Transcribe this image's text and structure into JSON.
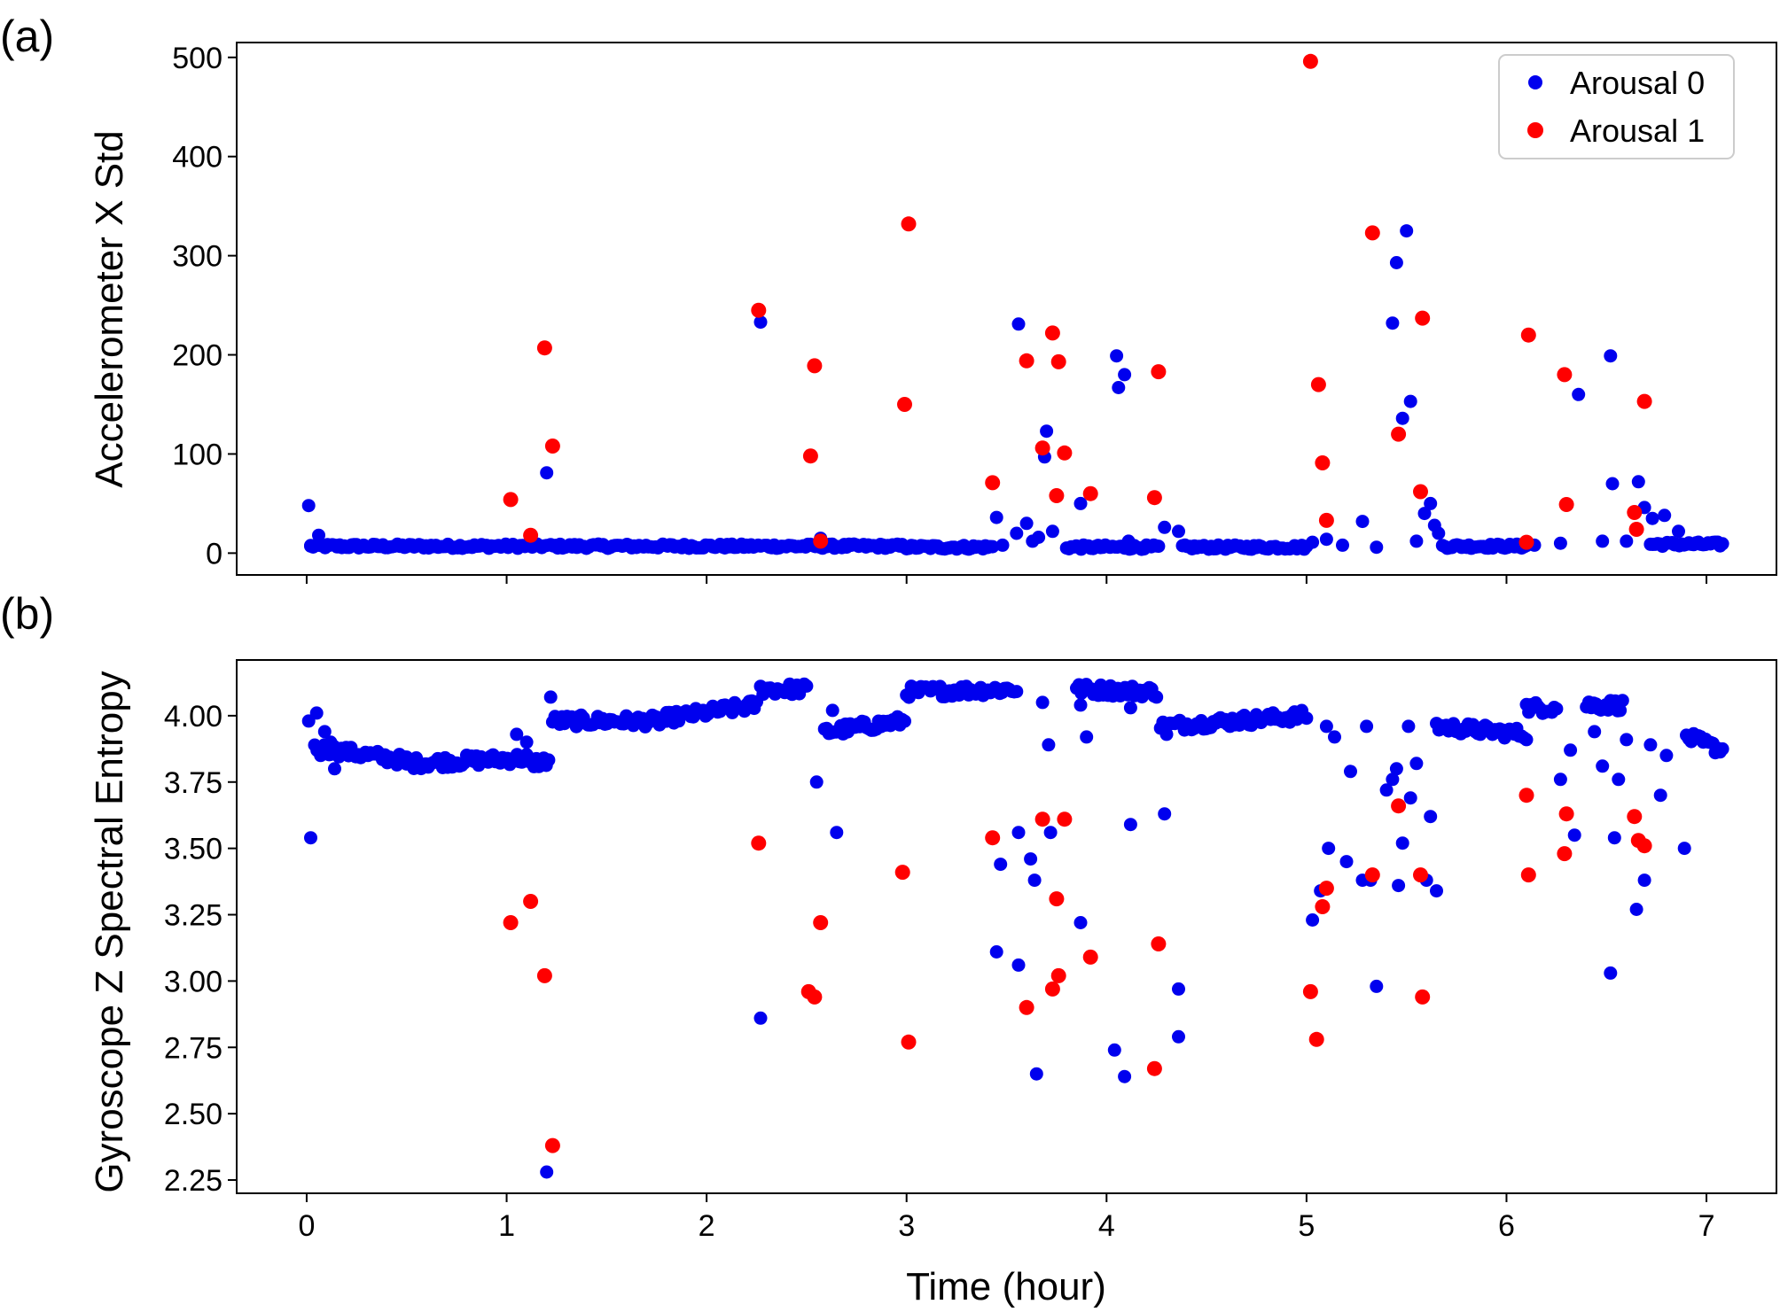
{
  "chart_data": [
    {
      "type": "scatter",
      "panel_label": "(a)",
      "title": "",
      "xlabel": "",
      "ylabel": "Accelerometer X Std",
      "xlim": [
        -0.35,
        7.35
      ],
      "ylim": [
        -22,
        515
      ],
      "xticks": [
        0,
        1,
        2,
        3,
        4,
        5,
        6,
        7
      ],
      "xtick_labels_shown": false,
      "yticks": [
        0,
        100,
        200,
        300,
        400,
        500
      ],
      "ytick_labels": [
        "0",
        "100",
        "200",
        "300",
        "400",
        "500"
      ],
      "legend": {
        "position": "top-right",
        "entries": [
          "Arousal 0",
          "Arousal 1"
        ]
      },
      "series": [
        {
          "name": "Arousal 0",
          "color": "#0000ee",
          "baseline": {
            "description": "dense low-level band",
            "segments": [
              {
                "x0": 0.02,
                "x1": 1.2,
                "y": 7
              },
              {
                "x0": 1.22,
                "x1": 2.27,
                "y": 7
              },
              {
                "x0": 2.29,
                "x1": 2.99,
                "y": 7
              },
              {
                "x0": 3.0,
                "x1": 3.43,
                "y": 6
              },
              {
                "x0": 3.8,
                "x1": 4.26,
                "y": 6
              },
              {
                "x0": 4.38,
                "x1": 5.0,
                "y": 6
              },
              {
                "x0": 5.68,
                "x1": 6.1,
                "y": 7
              },
              {
                "x0": 6.72,
                "x1": 7.08,
                "y": 9
              }
            ]
          },
          "points": [
            [
              0.01,
              48
            ],
            [
              0.06,
              18
            ],
            [
              0.02,
              7
            ],
            [
              1.2,
              81
            ],
            [
              2.27,
              233
            ],
            [
              2.57,
              15
            ],
            [
              3.45,
              36
            ],
            [
              3.48,
              8
            ],
            [
              3.56,
              231
            ],
            [
              3.55,
              20
            ],
            [
              3.6,
              30
            ],
            [
              3.63,
              12
            ],
            [
              3.66,
              16
            ],
            [
              3.69,
              97
            ],
            [
              3.7,
              123
            ],
            [
              3.73,
              22
            ],
            [
              3.87,
              50
            ],
            [
              4.05,
              199
            ],
            [
              4.06,
              167
            ],
            [
              4.09,
              180
            ],
            [
              4.11,
              12
            ],
            [
              4.29,
              26
            ],
            [
              4.36,
              22
            ],
            [
              5.03,
              11
            ],
            [
              5.1,
              14
            ],
            [
              5.18,
              8
            ],
            [
              5.28,
              32
            ],
            [
              5.35,
              6
            ],
            [
              5.43,
              232
            ],
            [
              5.45,
              293
            ],
            [
              5.48,
              136
            ],
            [
              5.5,
              325
            ],
            [
              5.52,
              153
            ],
            [
              5.55,
              12
            ],
            [
              5.59,
              40
            ],
            [
              5.62,
              50
            ],
            [
              5.64,
              28
            ],
            [
              5.66,
              20
            ],
            [
              6.14,
              8
            ],
            [
              6.27,
              10
            ],
            [
              6.36,
              160
            ],
            [
              6.48,
              12
            ],
            [
              6.52,
              199
            ],
            [
              6.53,
              70
            ],
            [
              6.6,
              12
            ],
            [
              6.66,
              72
            ],
            [
              6.69,
              46
            ],
            [
              6.73,
              35
            ],
            [
              6.79,
              38
            ],
            [
              6.86,
              22
            ]
          ]
        },
        {
          "name": "Arousal 1",
          "color": "#ff0000",
          "points": [
            [
              1.02,
              54
            ],
            [
              1.12,
              18
            ],
            [
              1.19,
              207
            ],
            [
              1.23,
              108
            ],
            [
              2.26,
              245
            ],
            [
              2.52,
              98
            ],
            [
              2.54,
              189
            ],
            [
              2.57,
              12
            ],
            [
              2.99,
              150
            ],
            [
              3.01,
              332
            ],
            [
              3.43,
              71
            ],
            [
              3.6,
              194
            ],
            [
              3.68,
              106
            ],
            [
              3.73,
              222
            ],
            [
              3.75,
              58
            ],
            [
              3.76,
              193
            ],
            [
              3.79,
              101
            ],
            [
              3.92,
              60
            ],
            [
              4.24,
              56
            ],
            [
              4.26,
              183
            ],
            [
              5.02,
              496
            ],
            [
              5.06,
              170
            ],
            [
              5.08,
              91
            ],
            [
              5.1,
              33
            ],
            [
              5.33,
              323
            ],
            [
              5.46,
              120
            ],
            [
              5.57,
              62
            ],
            [
              5.58,
              237
            ],
            [
              6.1,
              11
            ],
            [
              6.11,
              220
            ],
            [
              6.29,
              180
            ],
            [
              6.3,
              49
            ],
            [
              6.64,
              41
            ],
            [
              6.65,
              24
            ],
            [
              6.69,
              153
            ]
          ]
        }
      ]
    },
    {
      "type": "scatter",
      "panel_label": "(b)",
      "title": "",
      "xlabel": "Time (hour)",
      "ylabel": "Gyroscope Z Spectral Entropy",
      "xlim": [
        -0.35,
        7.35
      ],
      "ylim": [
        2.2,
        4.21
      ],
      "xticks": [
        0,
        1,
        2,
        3,
        4,
        5,
        6,
        7
      ],
      "xtick_labels": [
        "0",
        "1",
        "2",
        "3",
        "4",
        "5",
        "6",
        "7"
      ],
      "yticks": [
        2.25,
        2.5,
        2.75,
        3.0,
        3.25,
        3.5,
        3.75,
        4.0
      ],
      "ytick_labels": [
        "2.25",
        "2.50",
        "2.75",
        "3.00",
        "3.25",
        "3.50",
        "3.75",
        "4.00"
      ],
      "series": [
        {
          "name": "Arousal 0",
          "color": "#0000ee",
          "baseline": {
            "description": "dense upper band with jitter",
            "segments": [
              {
                "x0": 0.04,
                "x1": 0.5,
                "y0": 3.88,
                "y1": 3.83
              },
              {
                "x0": 0.5,
                "x1": 1.1,
                "y0": 3.82,
                "y1": 3.84
              },
              {
                "x0": 1.1,
                "x1": 1.21,
                "y0": 3.82,
                "y1": 3.83
              },
              {
                "x0": 1.23,
                "x1": 1.8,
                "y0": 3.98,
                "y1": 3.98
              },
              {
                "x0": 1.8,
                "x1": 2.25,
                "y0": 3.99,
                "y1": 4.04
              },
              {
                "x0": 2.27,
                "x1": 2.5,
                "y0": 4.1,
                "y1": 4.1
              },
              {
                "x0": 2.6,
                "x1": 2.99,
                "y0": 3.94,
                "y1": 3.98
              },
              {
                "x0": 3.0,
                "x1": 3.55,
                "y0": 4.09,
                "y1": 4.1
              },
              {
                "x0": 3.85,
                "x1": 4.25,
                "y0": 4.1,
                "y1": 4.09
              },
              {
                "x0": 4.27,
                "x1": 5.0,
                "y0": 3.96,
                "y1": 4.0
              },
              {
                "x0": 5.65,
                "x1": 6.1,
                "y0": 3.96,
                "y1": 3.93
              },
              {
                "x0": 6.1,
                "x1": 6.25,
                "y0": 4.03,
                "y1": 4.03
              },
              {
                "x0": 6.4,
                "x1": 6.58,
                "y0": 4.04,
                "y1": 4.04
              },
              {
                "x0": 6.9,
                "x1": 7.08,
                "y0": 3.92,
                "y1": 3.87
              }
            ]
          },
          "points": [
            [
              0.01,
              3.98
            ],
            [
              0.05,
              4.01
            ],
            [
              0.07,
              3.85
            ],
            [
              0.09,
              3.94
            ],
            [
              0.12,
              3.9
            ],
            [
              0.14,
              3.8
            ],
            [
              0.02,
              3.54
            ],
            [
              1.05,
              3.93
            ],
            [
              1.1,
              3.9
            ],
            [
              1.2,
              2.28
            ],
            [
              1.22,
              4.07
            ],
            [
              2.27,
              2.86
            ],
            [
              2.55,
              3.75
            ],
            [
              2.59,
              3.95
            ],
            [
              2.63,
              4.02
            ],
            [
              2.65,
              3.56
            ],
            [
              3.47,
              3.44
            ],
            [
              3.45,
              3.11
            ],
            [
              3.56,
              3.06
            ],
            [
              3.56,
              3.56
            ],
            [
              3.62,
              3.46
            ],
            [
              3.64,
              3.38
            ],
            [
              3.65,
              2.65
            ],
            [
              3.68,
              4.05
            ],
            [
              3.71,
              3.89
            ],
            [
              3.72,
              3.56
            ],
            [
              3.87,
              3.22
            ],
            [
              3.9,
              3.92
            ],
            [
              3.87,
              4.04
            ],
            [
              4.04,
              2.74
            ],
            [
              4.09,
              2.64
            ],
            [
              4.12,
              3.59
            ],
            [
              4.12,
              4.03
            ],
            [
              4.29,
              3.63
            ],
            [
              4.3,
              3.93
            ],
            [
              4.36,
              2.97
            ],
            [
              4.36,
              2.79
            ],
            [
              5.03,
              3.23
            ],
            [
              5.07,
              3.34
            ],
            [
              5.11,
              3.5
            ],
            [
              5.1,
              3.96
            ],
            [
              5.14,
              3.92
            ],
            [
              5.2,
              3.45
            ],
            [
              5.22,
              3.79
            ],
            [
              5.28,
              3.38
            ],
            [
              5.3,
              3.96
            ],
            [
              5.32,
              3.38
            ],
            [
              5.35,
              2.98
            ],
            [
              5.4,
              3.72
            ],
            [
              5.43,
              3.76
            ],
            [
              5.45,
              3.8
            ],
            [
              5.46,
              3.36
            ],
            [
              5.48,
              3.52
            ],
            [
              5.51,
              3.96
            ],
            [
              5.52,
              3.69
            ],
            [
              5.55,
              3.82
            ],
            [
              5.6,
              3.38
            ],
            [
              5.62,
              3.62
            ],
            [
              5.65,
              3.34
            ],
            [
              6.27,
              3.76
            ],
            [
              6.32,
              3.87
            ],
            [
              6.34,
              3.55
            ],
            [
              6.44,
              3.94
            ],
            [
              6.48,
              3.81
            ],
            [
              6.52,
              3.03
            ],
            [
              6.54,
              3.54
            ],
            [
              6.56,
              3.76
            ],
            [
              6.6,
              3.91
            ],
            [
              6.65,
              3.27
            ],
            [
              6.69,
              3.38
            ],
            [
              6.72,
              3.89
            ],
            [
              6.77,
              3.7
            ],
            [
              6.89,
              3.5
            ],
            [
              6.8,
              3.85
            ]
          ]
        },
        {
          "name": "Arousal 1",
          "color": "#ff0000",
          "points": [
            [
              1.02,
              3.22
            ],
            [
              1.12,
              3.3
            ],
            [
              1.19,
              3.02
            ],
            [
              1.23,
              2.38
            ],
            [
              2.26,
              3.52
            ],
            [
              2.51,
              2.96
            ],
            [
              2.54,
              2.94
            ],
            [
              2.57,
              3.22
            ],
            [
              2.98,
              3.41
            ],
            [
              3.01,
              2.77
            ],
            [
              3.43,
              3.54
            ],
            [
              3.6,
              2.9
            ],
            [
              3.68,
              3.61
            ],
            [
              3.73,
              2.97
            ],
            [
              3.75,
              3.31
            ],
            [
              3.76,
              3.02
            ],
            [
              3.79,
              3.61
            ],
            [
              3.92,
              3.09
            ],
            [
              4.24,
              2.67
            ],
            [
              4.26,
              3.14
            ],
            [
              5.02,
              2.96
            ],
            [
              5.05,
              2.78
            ],
            [
              5.08,
              3.28
            ],
            [
              5.1,
              3.35
            ],
            [
              5.33,
              3.4
            ],
            [
              5.46,
              3.66
            ],
            [
              5.57,
              3.4
            ],
            [
              5.58,
              2.94
            ],
            [
              6.1,
              3.7
            ],
            [
              6.11,
              3.4
            ],
            [
              6.29,
              3.48
            ],
            [
              6.3,
              3.63
            ],
            [
              6.64,
              3.62
            ],
            [
              6.66,
              3.53
            ],
            [
              6.69,
              3.51
            ]
          ]
        }
      ]
    }
  ]
}
